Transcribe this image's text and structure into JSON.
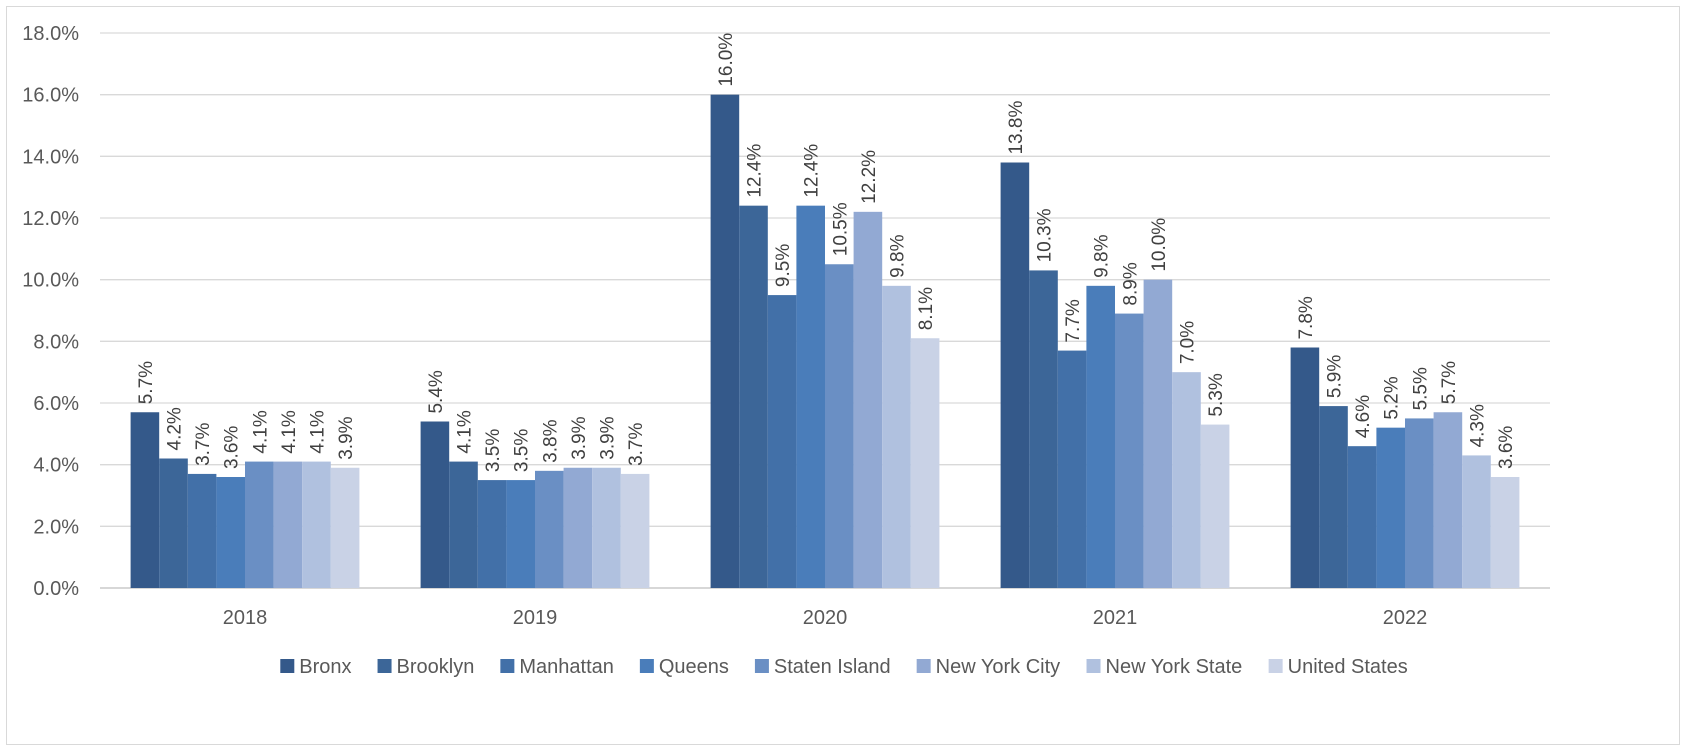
{
  "chart_data": {
    "type": "bar",
    "categories": [
      "2018",
      "2019",
      "2020",
      "2021",
      "2022"
    ],
    "ylim": [
      0,
      18
    ],
    "yticks": [
      0,
      2,
      4,
      6,
      8,
      10,
      12,
      14,
      16,
      18
    ],
    "ytick_labels": [
      "0.0%",
      "2.0%",
      "4.0%",
      "6.0%",
      "8.0%",
      "10.0%",
      "12.0%",
      "14.0%",
      "16.0%",
      "18.0%"
    ],
    "grid": true,
    "legend_position": "bottom",
    "series": [
      {
        "name": "Bronx",
        "color": "#34598a",
        "values": [
          5.7,
          5.4,
          16.0,
          13.8,
          7.8
        ],
        "labels": [
          "5.7%",
          "5.4%",
          "16.0%",
          "13.8%",
          "7.8%"
        ]
      },
      {
        "name": "Brooklyn",
        "color": "#3c6698",
        "values": [
          4.2,
          4.1,
          12.4,
          10.3,
          5.9
        ],
        "labels": [
          "4.2%",
          "4.1%",
          "12.4%",
          "10.3%",
          "5.9%"
        ]
      },
      {
        "name": "Manhattan",
        "color": "#4270a8",
        "values": [
          3.7,
          3.5,
          9.5,
          7.7,
          4.6
        ],
        "labels": [
          "3.7%",
          "3.5%",
          "9.5%",
          "7.7%",
          "4.6%"
        ]
      },
      {
        "name": "Queens",
        "color": "#4a7dba",
        "values": [
          3.6,
          3.5,
          12.4,
          9.8,
          5.2
        ],
        "labels": [
          "3.6%",
          "3.5%",
          "12.4%",
          "9.8%",
          "5.2%"
        ]
      },
      {
        "name": "Staten Island",
        "color": "#6a8fc4",
        "values": [
          4.1,
          3.8,
          10.5,
          8.9,
          5.5
        ],
        "labels": [
          "4.1%",
          "3.8%",
          "10.5%",
          "8.9%",
          "5.5%"
        ]
      },
      {
        "name": "New York City",
        "color": "#92a9d3",
        "values": [
          4.1,
          3.9,
          12.2,
          10.0,
          5.7
        ],
        "labels": [
          "4.1%",
          "3.9%",
          "12.2%",
          "10.0%",
          "5.7%"
        ]
      },
      {
        "name": "New York State",
        "color": "#b0c1df",
        "values": [
          4.1,
          3.9,
          9.8,
          7.0,
          4.3
        ],
        "labels": [
          "4.1%",
          "3.9%",
          "9.8%",
          "7.0%",
          "4.3%"
        ]
      },
      {
        "name": "United States",
        "color": "#c9d2e6",
        "values": [
          3.9,
          3.7,
          8.1,
          5.3,
          3.6
        ],
        "labels": [
          "3.9%",
          "3.7%",
          "8.1%",
          "5.3%",
          "3.6%"
        ]
      }
    ]
  }
}
